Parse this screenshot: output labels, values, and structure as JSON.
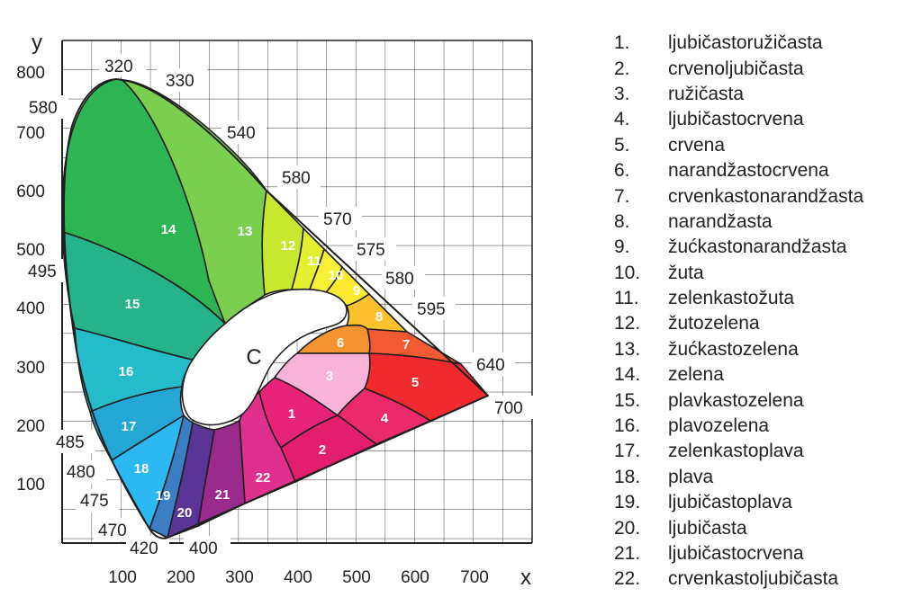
{
  "axes": {
    "x_label": "x",
    "y_label": "y",
    "x_ticks": [
      "100",
      "200",
      "300",
      "400",
      "500",
      "600",
      "700"
    ],
    "y_ticks": [
      "800",
      "700",
      "600",
      "500",
      "400",
      "300",
      "200",
      "100"
    ]
  },
  "wavelength_labels": [
    "320",
    "330",
    "540",
    "580",
    "570",
    "575",
    "580",
    "595",
    "640",
    "700",
    "580",
    "495",
    "485",
    "480",
    "475",
    "470",
    "420",
    "400"
  ],
  "center_label": "C",
  "zones": [
    {
      "num": "1",
      "color": "#e8237a"
    },
    {
      "num": "2",
      "color": "#e31e6c"
    },
    {
      "num": "3",
      "color": "#f9b3d8"
    },
    {
      "num": "4",
      "color": "#ea2a6a"
    },
    {
      "num": "5",
      "color": "#f02a2e"
    },
    {
      "num": "6",
      "color": "#f39430"
    },
    {
      "num": "7",
      "color": "#f25a31"
    },
    {
      "num": "8",
      "color": "#fcc22e"
    },
    {
      "num": "9",
      "color": "#fde930"
    },
    {
      "num": "10",
      "color": "#f7f037"
    },
    {
      "num": "11",
      "color": "#e6f032"
    },
    {
      "num": "12",
      "color": "#c8e830"
    },
    {
      "num": "13",
      "color": "#7ccf4e"
    },
    {
      "num": "14",
      "color": "#2db553"
    },
    {
      "num": "15",
      "color": "#26b38a"
    },
    {
      "num": "16",
      "color": "#23bcc8"
    },
    {
      "num": "17",
      "color": "#25a7d6"
    },
    {
      "num": "18",
      "color": "#2cb8f0"
    },
    {
      "num": "19",
      "color": "#3c7ec4"
    },
    {
      "num": "20",
      "color": "#5a3596"
    },
    {
      "num": "21",
      "color": "#9a2a8c"
    },
    {
      "num": "22",
      "color": "#e0308d"
    }
  ],
  "legend": [
    {
      "num": "1.",
      "name": "ljubičastoružičasta"
    },
    {
      "num": "2.",
      "name": "crvenoljubičasta"
    },
    {
      "num": "3.",
      "name": "ružičasta"
    },
    {
      "num": "4.",
      "name": "ljubičastocrvena"
    },
    {
      "num": "5.",
      "name": "crvena"
    },
    {
      "num": "6.",
      "name": "narandžastocrvena"
    },
    {
      "num": "7.",
      "name": "crvenkastonarandžasta"
    },
    {
      "num": "8.",
      "name": "narandžasta"
    },
    {
      "num": "9.",
      "name": "žućkastonarandžasta"
    },
    {
      "num": "10.",
      "name": "žuta"
    },
    {
      "num": "11.",
      "name": "zelenkastožuta"
    },
    {
      "num": "12.",
      "name": "žutozelena"
    },
    {
      "num": "13.",
      "name": "žućkastozelena"
    },
    {
      "num": "14.",
      "name": "zelena"
    },
    {
      "num": "15.",
      "name": "plavkastozelena"
    },
    {
      "num": "16.",
      "name": "plavozelena"
    },
    {
      "num": "17.",
      "name": "zelenkastoplava"
    },
    {
      "num": "18.",
      "name": "plava"
    },
    {
      "num": "19.",
      "name": "ljubičastoplava"
    },
    {
      "num": "20.",
      "name": "ljubičasta"
    },
    {
      "num": "21.",
      "name": "ljubičastocrvena"
    },
    {
      "num": "22.",
      "name": "crvenkastoljubičasta"
    }
  ]
}
